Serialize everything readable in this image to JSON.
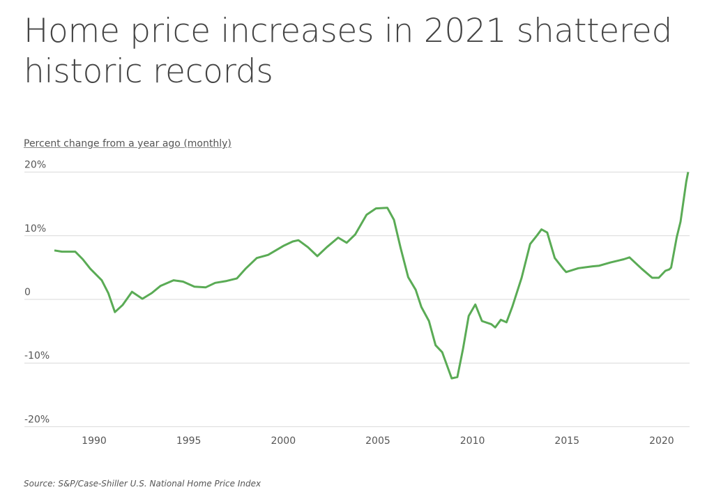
{
  "chart_data": {
    "type": "line",
    "title": "Home price increases in 2021 shattered historic records",
    "subtitle": "Percent change from a year ago (monthly)",
    "source": "Source:  S&P/Case-Shiller U.S. National Home Price Index",
    "ylim": [
      -20,
      20
    ],
    "yticks": [
      20,
      10,
      0,
      -10,
      -20
    ],
    "ytick_labels": [
      "20%",
      "10%",
      "0",
      "-10%",
      "-20%"
    ],
    "xlim": [
      1986.7,
      2021.5
    ],
    "xticks": [
      1990,
      1995,
      2000,
      2005,
      2010,
      2015,
      2020
    ],
    "xtick_labels": [
      "1990",
      "1995",
      "2000",
      "2005",
      "2010",
      "2015",
      "2020"
    ],
    "grid": "horizontal",
    "line_color": "#5aab55",
    "series": [
      {
        "x": [
          1987.9,
          1988.3,
          1989.0,
          1989.4,
          1989.8,
          1990.4,
          1990.75,
          1991.1,
          1991.5,
          1992.0,
          1992.55,
          1993.05,
          1993.5,
          1994.2,
          1994.7,
          1995.3,
          1995.9,
          1996.4,
          1997.0,
          1997.55,
          1998.0,
          1998.6,
          1999.2,
          2000.0,
          2000.5,
          2000.8,
          2001.3,
          2001.8,
          2002.3,
          2002.9,
          2003.35,
          2003.8,
          2004.4,
          2004.9,
          2005.5,
          2005.85,
          2006.2,
          2006.6,
          2007.0,
          2007.3,
          2007.7,
          2008.05,
          2008.4,
          2008.9,
          2009.2,
          2009.5,
          2009.8,
          2010.15,
          2010.5,
          2011.0,
          2011.2,
          2011.5,
          2011.8,
          2012.1,
          2012.6,
          2013.05,
          2013.4,
          2013.65,
          2013.95,
          2014.35,
          2014.8,
          2014.95,
          2015.6,
          2016.35,
          2016.7,
          2017.3,
          2018.0,
          2018.3,
          2018.95,
          2019.5,
          2019.85,
          2020.2,
          2020.4,
          2020.5,
          2020.8,
          2021.0,
          2021.3,
          2021.4
        ],
        "values": [
          7.7,
          7.5,
          7.5,
          6.3,
          4.8,
          3.0,
          1.0,
          -2.0,
          -0.9,
          1.2,
          0.1,
          1.0,
          2.1,
          3.0,
          2.8,
          2.0,
          1.9,
          2.6,
          2.9,
          3.3,
          4.8,
          6.5,
          7.0,
          8.4,
          9.1,
          9.3,
          8.2,
          6.8,
          8.2,
          9.7,
          8.9,
          10.2,
          13.3,
          14.3,
          14.4,
          12.5,
          8.1,
          3.5,
          1.5,
          -1.2,
          -3.4,
          -7.2,
          -8.3,
          -12.4,
          -12.2,
          -7.8,
          -2.6,
          -0.8,
          -3.4,
          -3.9,
          -4.4,
          -3.2,
          -3.6,
          -1.2,
          3.4,
          8.7,
          10.0,
          11.0,
          10.5,
          6.5,
          4.8,
          4.3,
          4.9,
          5.2,
          5.3,
          5.8,
          6.3,
          6.6,
          4.8,
          3.4,
          3.4,
          4.5,
          4.7,
          5.0,
          9.8,
          12.2,
          18.5,
          20.0
        ]
      }
    ]
  }
}
